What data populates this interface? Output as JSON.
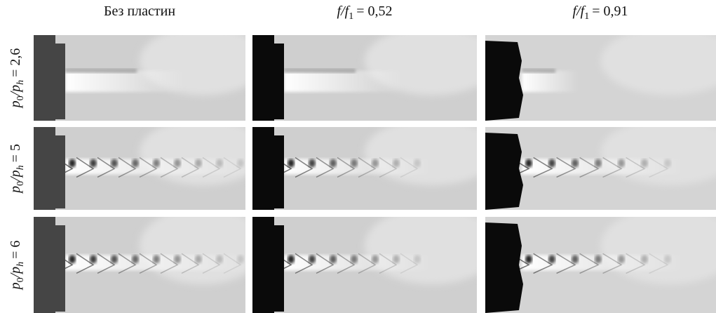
{
  "columns": [
    {
      "label": "Без пластин"
    },
    {
      "var": "f/f",
      "sub": "1",
      "value": "= 0,52"
    },
    {
      "var": "f/f",
      "sub": "1",
      "value": "= 0,91"
    }
  ],
  "rows": [
    {
      "num": "p",
      "num_sub": "0",
      "den": "/p",
      "den_sub": "h",
      "value": "= 2,6"
    },
    {
      "num": "p",
      "num_sub": "0",
      "den": "/p",
      "den_sub": "h",
      "value": "= 5"
    },
    {
      "num": "p",
      "num_sub": "0",
      "den": "/p",
      "den_sub": "h",
      "value": "= 6"
    }
  ]
}
